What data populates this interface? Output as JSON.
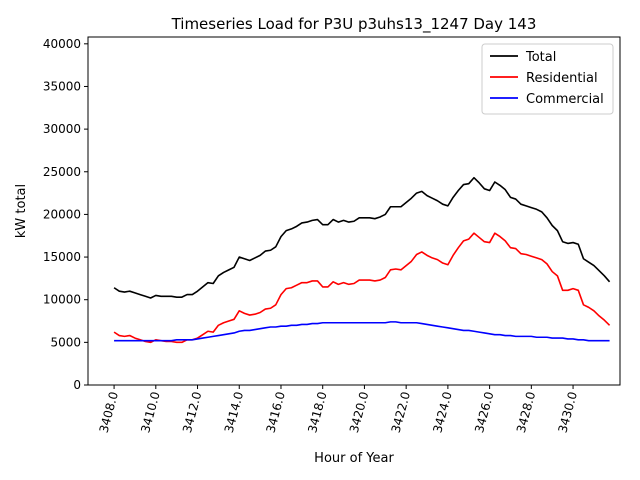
{
  "chart_data": {
    "type": "line",
    "title": "Timeseries Load for P3U p3uhs13_1247  Day 143",
    "xlabel": "Hour of Year",
    "ylabel": "kW total",
    "xlim": [
      3406.75,
      3432.25
    ],
    "ylim": [
      0,
      40800
    ],
    "xticks": [
      3408,
      3410,
      3412,
      3414,
      3416,
      3418,
      3420,
      3422,
      3424,
      3426,
      3428,
      3430
    ],
    "xtick_labels": [
      "3408.0",
      "3410.0",
      "3412.0",
      "3414.0",
      "3416.0",
      "3418.0",
      "3420.0",
      "3422.0",
      "3424.0",
      "3426.0",
      "3428.0",
      "3430.0"
    ],
    "yticks": [
      0,
      5000,
      10000,
      15000,
      20000,
      25000,
      30000,
      35000,
      40000
    ],
    "ytick_labels": [
      "0",
      "5000",
      "10000",
      "15000",
      "20000",
      "25000",
      "30000",
      "35000",
      "40000"
    ],
    "grid": false,
    "legend_position": "top-right",
    "x": [
      3408.0,
      3408.25,
      3408.5,
      3408.75,
      3409.0,
      3409.25,
      3409.5,
      3409.75,
      3410.0,
      3410.25,
      3410.5,
      3410.75,
      3411.0,
      3411.25,
      3411.5,
      3411.75,
      3412.0,
      3412.25,
      3412.5,
      3412.75,
      3413.0,
      3413.25,
      3413.5,
      3413.75,
      3414.0,
      3414.25,
      3414.5,
      3414.75,
      3415.0,
      3415.25,
      3415.5,
      3415.75,
      3416.0,
      3416.25,
      3416.5,
      3416.75,
      3417.0,
      3417.25,
      3417.5,
      3417.75,
      3418.0,
      3418.25,
      3418.5,
      3418.75,
      3419.0,
      3419.25,
      3419.5,
      3419.75,
      3420.0,
      3420.25,
      3420.5,
      3420.75,
      3421.0,
      3421.25,
      3421.5,
      3421.75,
      3422.0,
      3422.25,
      3422.5,
      3422.75,
      3423.0,
      3423.25,
      3423.5,
      3423.75,
      3424.0,
      3424.25,
      3424.5,
      3424.75,
      3425.0,
      3425.25,
      3425.5,
      3425.75,
      3426.0,
      3426.25,
      3426.5,
      3426.75,
      3427.0,
      3427.25,
      3427.5,
      3427.75,
      3428.0,
      3428.25,
      3428.5,
      3428.75,
      3429.0,
      3429.25,
      3429.5,
      3429.75,
      3430.0,
      3430.25,
      3430.5,
      3430.75,
      3431.0,
      3431.25,
      3431.5,
      3431.75
    ],
    "series": [
      {
        "name": "Total",
        "color": "#000000",
        "values": [
          11400,
          11000,
          10900,
          11000,
          10800,
          10600,
          10400,
          10200,
          10500,
          10400,
          10400,
          10400,
          10300,
          10300,
          10600,
          10600,
          11000,
          11500,
          12000,
          11900,
          12800,
          13200,
          13500,
          13800,
          15000,
          14800,
          14600,
          14900,
          15200,
          15700,
          15800,
          16200,
          17400,
          18100,
          18300,
          18600,
          19000,
          19100,
          19300,
          19400,
          18800,
          18800,
          19400,
          19100,
          19300,
          19100,
          19200,
          19600,
          19600,
          19600,
          19500,
          19700,
          20000,
          20900,
          20900,
          20900,
          21400,
          21900,
          22500,
          22700,
          22200,
          21900,
          21600,
          21200,
          21000,
          22000,
          22800,
          23500,
          23600,
          24300,
          23700,
          23000,
          22800,
          23800,
          23400,
          22900,
          22000,
          21800,
          21200,
          21000,
          20800,
          20600,
          20300,
          19600,
          18700,
          18100,
          16800,
          16600,
          16700,
          16500,
          14800,
          14400,
          14000,
          13400,
          12800,
          12100
        ]
      },
      {
        "name": "Residential",
        "color": "#ff0000",
        "values": [
          6200,
          5800,
          5700,
          5800,
          5500,
          5300,
          5100,
          5000,
          5300,
          5200,
          5100,
          5100,
          5000,
          5000,
          5300,
          5300,
          5500,
          5900,
          6300,
          6200,
          7000,
          7300,
          7500,
          7700,
          8700,
          8400,
          8200,
          8300,
          8500,
          8900,
          9000,
          9400,
          10600,
          11300,
          11400,
          11700,
          12000,
          12000,
          12200,
          12200,
          11500,
          11500,
          12100,
          11800,
          12000,
          11800,
          11900,
          12300,
          12300,
          12300,
          12200,
          12300,
          12600,
          13500,
          13600,
          13500,
          14000,
          14500,
          15300,
          15600,
          15200,
          14900,
          14700,
          14300,
          14100,
          15200,
          16100,
          16900,
          17100,
          17800,
          17300,
          16800,
          16700,
          17800,
          17400,
          16900,
          16100,
          16000,
          15400,
          15300,
          15100,
          14900,
          14700,
          14200,
          13300,
          12800,
          11100,
          11100,
          11300,
          11100,
          9400,
          9100,
          8700,
          8100,
          7600,
          7000
        ]
      },
      {
        "name": "Commercial",
        "color": "#0000ff",
        "values": [
          5200,
          5200,
          5200,
          5200,
          5200,
          5200,
          5200,
          5200,
          5200,
          5200,
          5200,
          5200,
          5300,
          5300,
          5300,
          5300,
          5400,
          5500,
          5600,
          5700,
          5800,
          5900,
          6000,
          6100,
          6300,
          6400,
          6400,
          6500,
          6600,
          6700,
          6800,
          6800,
          6900,
          6900,
          7000,
          7000,
          7100,
          7100,
          7200,
          7200,
          7300,
          7300,
          7300,
          7300,
          7300,
          7300,
          7300,
          7300,
          7300,
          7300,
          7300,
          7300,
          7300,
          7400,
          7400,
          7300,
          7300,
          7300,
          7300,
          7200,
          7100,
          7000,
          6900,
          6800,
          6700,
          6600,
          6500,
          6400,
          6400,
          6300,
          6200,
          6100,
          6000,
          5900,
          5900,
          5800,
          5800,
          5700,
          5700,
          5700,
          5700,
          5600,
          5600,
          5600,
          5500,
          5500,
          5500,
          5400,
          5400,
          5300,
          5300,
          5200,
          5200,
          5200,
          5200,
          5200
        ]
      }
    ]
  }
}
